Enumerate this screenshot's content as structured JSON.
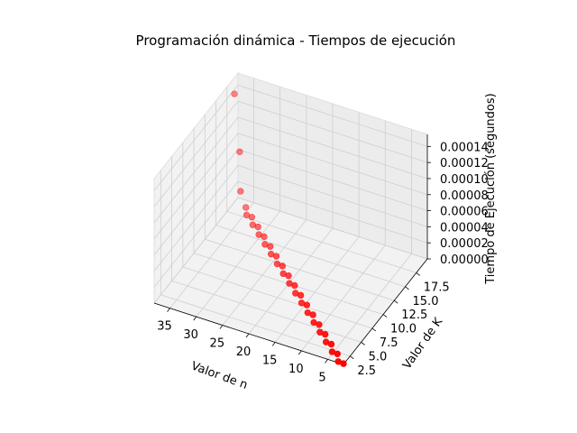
{
  "chart_data": {
    "type": "scatter",
    "title": "Programación dinámica - Tiempos de ejecución",
    "xlabel": "Valor de n",
    "ylabel": "Valor de K",
    "zlabel": "Tiempo de Ejecución (segundos)",
    "x_ticks": [
      "5",
      "10",
      "15",
      "20",
      "25",
      "30",
      "35"
    ],
    "y_ticks": [
      "2.5",
      "5.0",
      "7.5",
      "10.0",
      "12.5",
      "15.0",
      "17.5"
    ],
    "z_ticks": [
      "0.00000",
      "0.00002",
      "0.00004",
      "0.00006",
      "0.00008",
      "0.00010",
      "0.00012",
      "0.00014"
    ],
    "xlim": [
      2,
      38
    ],
    "ylim": [
      1,
      20
    ],
    "zlim": [
      0,
      0.000155
    ],
    "marker_color": "#ff0000",
    "grid": true,
    "points": [
      {
        "x": 2,
        "y": 1,
        "z": 1e-06
      },
      {
        "x": 3,
        "y": 1,
        "z": 1.5e-06
      },
      {
        "x": 4,
        "y": 2,
        "z": 2e-06
      },
      {
        "x": 5,
        "y": 2,
        "z": 2.5e-06
      },
      {
        "x": 6,
        "y": 3,
        "z": 3e-06
      },
      {
        "x": 7,
        "y": 3,
        "z": 3.5e-06
      },
      {
        "x": 8,
        "y": 4,
        "z": 4e-06
      },
      {
        "x": 9,
        "y": 4,
        "z": 4.5e-06
      },
      {
        "x": 10,
        "y": 5,
        "z": 5e-06
      },
      {
        "x": 11,
        "y": 5,
        "z": 5.5e-06
      },
      {
        "x": 12,
        "y": 6,
        "z": 6e-06
      },
      {
        "x": 13,
        "y": 6,
        "z": 6.5e-06
      },
      {
        "x": 14,
        "y": 7,
        "z": 7e-06
      },
      {
        "x": 15,
        "y": 7,
        "z": 7.5e-06
      },
      {
        "x": 16,
        "y": 8,
        "z": 8e-06
      },
      {
        "x": 17,
        "y": 8,
        "z": 8.5e-06
      },
      {
        "x": 18,
        "y": 9,
        "z": 9e-06
      },
      {
        "x": 19,
        "y": 9,
        "z": 9.5e-06
      },
      {
        "x": 20,
        "y": 10,
        "z": 1e-05
      },
      {
        "x": 21,
        "y": 10,
        "z": 1.05e-05
      },
      {
        "x": 22,
        "y": 11,
        "z": 1.1e-05
      },
      {
        "x": 23,
        "y": 11,
        "z": 1.15e-05
      },
      {
        "x": 24,
        "y": 12,
        "z": 1.2e-05
      },
      {
        "x": 25,
        "y": 12,
        "z": 1.25e-05
      },
      {
        "x": 26,
        "y": 13,
        "z": 1.3e-05
      },
      {
        "x": 27,
        "y": 13,
        "z": 1.35e-05
      },
      {
        "x": 28,
        "y": 14,
        "z": 1.4e-05
      },
      {
        "x": 29,
        "y": 14,
        "z": 1.45e-05
      },
      {
        "x": 30,
        "y": 15,
        "z": 1.5e-05
      },
      {
        "x": 31,
        "y": 15,
        "z": 1.55e-05
      },
      {
        "x": 32,
        "y": 16,
        "z": 1.6e-05
      },
      {
        "x": 33,
        "y": 16,
        "z": 1.65e-05
      },
      {
        "x": 34,
        "y": 17,
        "z": 1.7e-05
      },
      {
        "x": 35,
        "y": 17,
        "z": 3.5e-05
      },
      {
        "x": 36,
        "y": 18,
        "z": 7.5e-05
      },
      {
        "x": 37,
        "y": 18,
        "z": 0.000145
      }
    ]
  }
}
